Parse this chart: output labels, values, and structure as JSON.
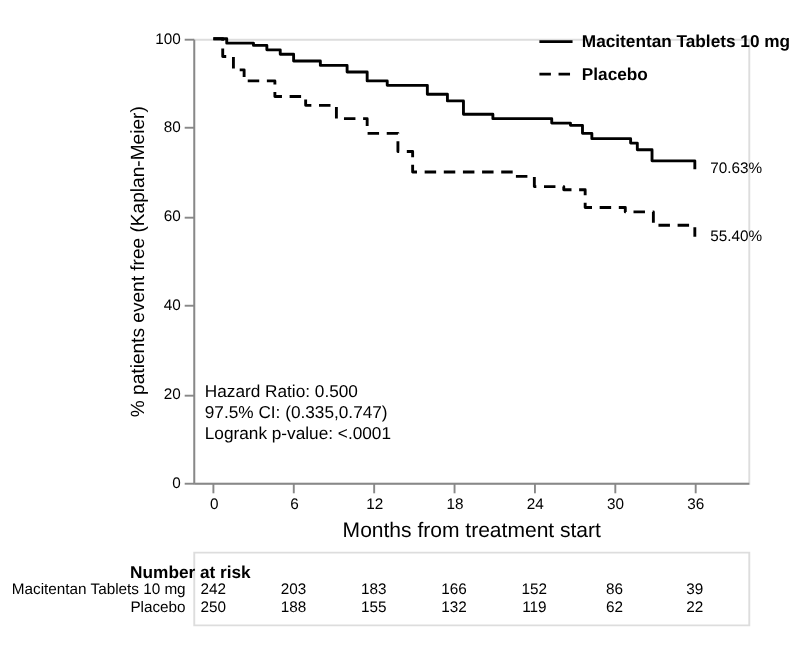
{
  "chart_data": {
    "type": "step",
    "ylabel": "% patients event free (Kaplan-Meier)",
    "xlabel": "Months from treatment start",
    "xlim": [
      -1.5,
      40
    ],
    "xticks": [
      0,
      6,
      12,
      18,
      24,
      30,
      36
    ],
    "ylim": [
      0,
      100
    ],
    "yticks": [
      0,
      20,
      40,
      60,
      80,
      100
    ],
    "series": [
      {
        "name": "Macitentan Tablets 10 mg",
        "color": "#000000",
        "line_style": "solid",
        "x": [
          0,
          1,
          3,
          4,
          5,
          6,
          8,
          10,
          11.5,
          13,
          16,
          17.5,
          18.7,
          20.9,
          25.3,
          26.7,
          27.6,
          28.3,
          31.2,
          31.7,
          32.8,
          36
        ],
        "values": [
          100,
          99,
          98.5,
          97.5,
          96.5,
          95,
          94,
          92.5,
          90.5,
          89.5,
          87.5,
          86,
          83,
          82,
          81,
          80.5,
          78.7,
          77.5,
          76.5,
          75,
          72.5,
          70.63
        ]
      },
      {
        "name": "Placebo",
        "color": "#000000",
        "line_style": "dashed",
        "x": [
          0,
          0.7,
          1.5,
          2.3,
          4.6,
          6.9,
          9.2,
          11.5,
          13.8,
          14.9,
          22.5,
          24,
          26.2,
          27.8,
          30.8,
          32.9,
          36
        ],
        "values": [
          100,
          96,
          93,
          90.5,
          87,
          85,
          82,
          78.7,
          74.6,
          70,
          69,
          66.7,
          66,
          62,
          61,
          58,
          55.4
        ]
      }
    ],
    "legend": "top right",
    "grid": false,
    "annotations": [
      {
        "text": "70.63%",
        "x": 36,
        "y": 70.63
      },
      {
        "text": "55.40%",
        "x": 36,
        "y": 55.4
      },
      "Hazard Ratio: 0.500",
      "97.5% CI: (0.335,0.747)",
      "Logrank p-value: <.0001",
      "Number at risk",
      "Macitentan Tablets 10 mg",
      "242",
      "203",
      "183",
      "166",
      "152",
      "86",
      "39",
      "Placebo",
      "250",
      "188",
      "155",
      "132",
      "119",
      "62",
      "22"
    ]
  }
}
